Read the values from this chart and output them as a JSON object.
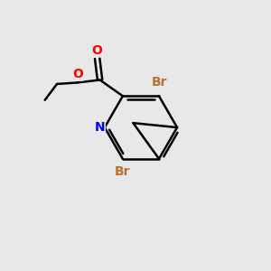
{
  "background_color": "#e8e8e8",
  "bond_color": "#000000",
  "bond_width": 1.8,
  "N_color": "#0000ff",
  "O_color": "#ff0000",
  "Br_color": "#b87333",
  "figsize": [
    3.0,
    3.0
  ],
  "dpi": 100,
  "xlim": [
    0,
    10
  ],
  "ylim": [
    0,
    10
  ]
}
